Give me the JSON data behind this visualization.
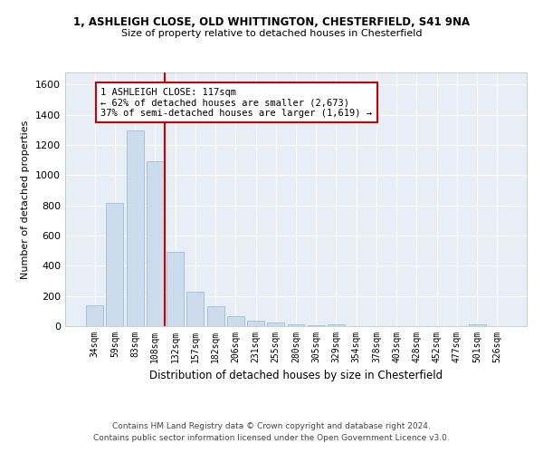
{
  "title_line1": "1, ASHLEIGH CLOSE, OLD WHITTINGTON, CHESTERFIELD, S41 9NA",
  "title_line2": "Size of property relative to detached houses in Chesterfield",
  "xlabel": "Distribution of detached houses by size in Chesterfield",
  "ylabel": "Number of detached properties",
  "bar_color": "#ccdcec",
  "bar_edgecolor": "#9dbdd6",
  "categories": [
    "34sqm",
    "59sqm",
    "83sqm",
    "108sqm",
    "132sqm",
    "157sqm",
    "182sqm",
    "206sqm",
    "231sqm",
    "255sqm",
    "280sqm",
    "305sqm",
    "329sqm",
    "354sqm",
    "378sqm",
    "403sqm",
    "428sqm",
    "452sqm",
    "477sqm",
    "501sqm",
    "526sqm"
  ],
  "values": [
    140,
    815,
    1295,
    1090,
    495,
    230,
    130,
    65,
    38,
    25,
    10,
    5,
    15,
    3,
    3,
    3,
    3,
    3,
    3,
    10,
    3
  ],
  "ylim": [
    0,
    1680
  ],
  "yticks": [
    0,
    200,
    400,
    600,
    800,
    1000,
    1200,
    1400,
    1600
  ],
  "vline_x": 3.5,
  "vline_color": "#cc0000",
  "annotation_text": "1 ASHLEIGH CLOSE: 117sqm\n← 62% of detached houses are smaller (2,673)\n37% of semi-detached houses are larger (1,619) →",
  "annotation_box_color": "#ffffff",
  "annotation_border_color": "#cc0000",
  "footer_line1": "Contains HM Land Registry data © Crown copyright and database right 2024.",
  "footer_line2": "Contains public sector information licensed under the Open Government Licence v3.0.",
  "plot_bg_color": "#e8eef5",
  "fig_bg_color": "#ffffff",
  "grid_color": "#ffffff"
}
